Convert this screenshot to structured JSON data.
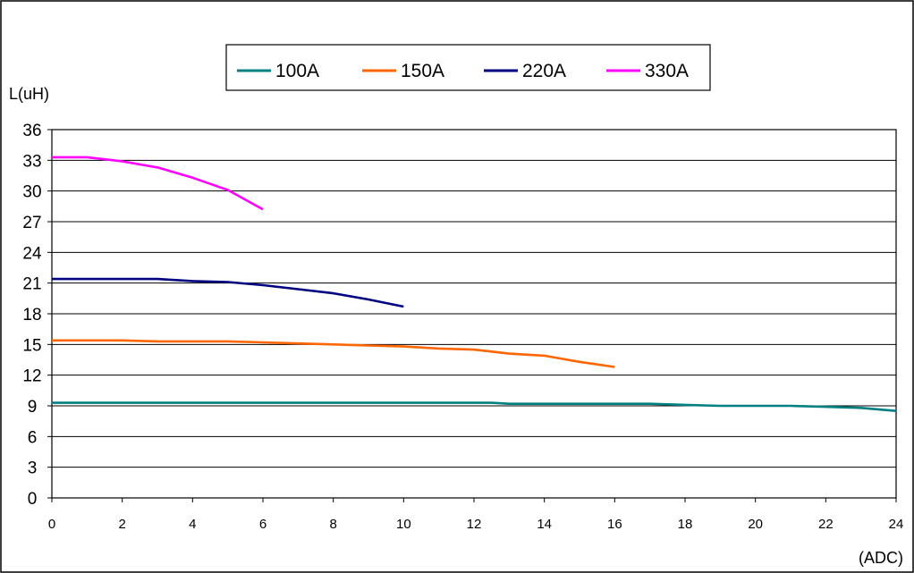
{
  "chart_data": {
    "type": "line",
    "ylabel": "L(uH)",
    "xlabel": "(ADC)",
    "xlim": [
      0,
      24
    ],
    "ylim": [
      0,
      36
    ],
    "x_ticks": [
      "0",
      "2",
      "4",
      "6",
      "8",
      "10",
      "12",
      "14",
      "16",
      "18",
      "20",
      "22",
      "24"
    ],
    "y_ticks": [
      "0",
      "3",
      "6",
      "9",
      "12",
      "15",
      "18",
      "21",
      "24",
      "27",
      "30",
      "33",
      "36"
    ],
    "grid": "horizontal",
    "legend_position": "top",
    "series": [
      {
        "name": "100A",
        "color": "#008080",
        "x": [
          0,
          1,
          2,
          3,
          4,
          5,
          6,
          7,
          8,
          9,
          10,
          11,
          12,
          12.5,
          13,
          14,
          15,
          16,
          17,
          18,
          19,
          20,
          21,
          22,
          23,
          24
        ],
        "y": [
          9.3,
          9.3,
          9.3,
          9.3,
          9.3,
          9.3,
          9.3,
          9.3,
          9.3,
          9.3,
          9.3,
          9.3,
          9.3,
          9.3,
          9.2,
          9.2,
          9.2,
          9.2,
          9.2,
          9.1,
          9.0,
          9.0,
          9.0,
          8.9,
          8.8,
          8.5
        ]
      },
      {
        "name": "150A",
        "color": "#FF6600",
        "x": [
          0,
          1,
          2,
          3,
          4,
          5,
          6,
          7,
          8,
          9,
          10,
          11,
          12,
          13,
          14,
          15,
          16
        ],
        "y": [
          15.4,
          15.4,
          15.4,
          15.3,
          15.3,
          15.3,
          15.2,
          15.1,
          15.0,
          14.9,
          14.8,
          14.6,
          14.5,
          14.1,
          13.9,
          13.3,
          12.8
        ]
      },
      {
        "name": "220A",
        "color": "#000080",
        "x": [
          0,
          1,
          2,
          3,
          4,
          5,
          6,
          7,
          8,
          9,
          10
        ],
        "y": [
          21.4,
          21.4,
          21.4,
          21.4,
          21.2,
          21.1,
          20.8,
          20.4,
          20.0,
          19.4,
          18.7
        ]
      },
      {
        "name": "330A",
        "color": "#FF00FF",
        "x": [
          0,
          1,
          2,
          3,
          4,
          5,
          6
        ],
        "y": [
          33.3,
          33.3,
          32.9,
          32.3,
          31.3,
          30.1,
          28.2
        ]
      }
    ]
  }
}
